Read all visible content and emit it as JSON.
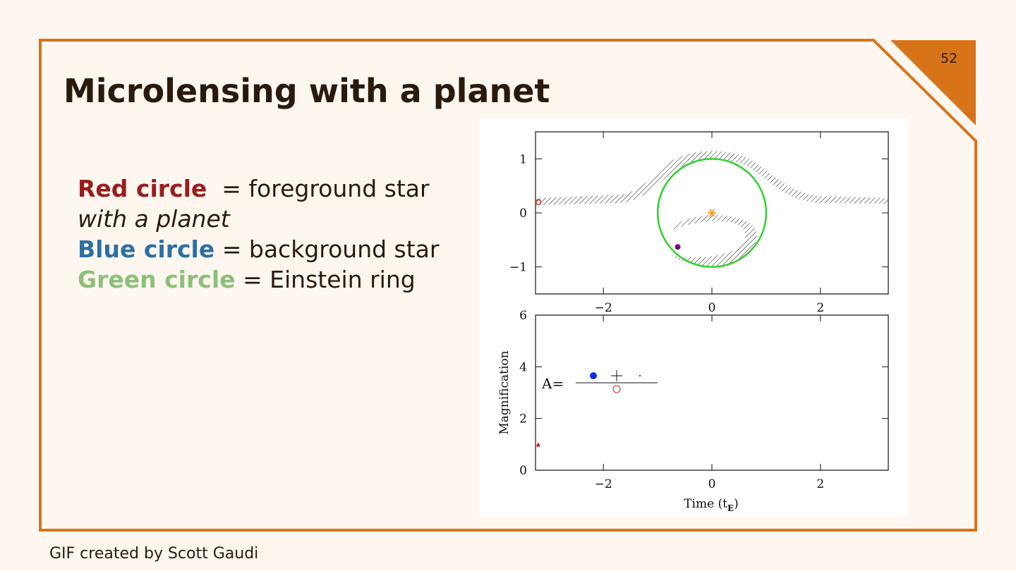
{
  "slide": {
    "number": "52",
    "title": "Microlensing with a planet",
    "lines": [
      {
        "label": "Red circle",
        "text": "= foreground star"
      },
      {
        "text": "with a planet"
      },
      {
        "label": "Blue circle",
        "text": "= background star"
      },
      {
        "label": "Green circle",
        "text": "= Einstein ring"
      }
    ],
    "footer": "GIF created by Scott Gaudi"
  },
  "figure": {
    "top": {
      "xlim": [
        -3.25,
        3.25
      ],
      "ylim": [
        -1.5,
        1.5
      ],
      "xticks": [
        {
          "value": -2,
          "label": "−2"
        },
        0,
        2
      ],
      "yticks": [
        {
          "value": -1,
          "label": "−1"
        },
        0,
        1
      ],
      "ring_radius": 1,
      "lens": [
        0,
        0
      ],
      "source": [
        -3.2,
        0.2
      ],
      "planet": [
        -0.63,
        -0.63
      ]
    },
    "bottom": {
      "xlim": [
        -3.25,
        3.25
      ],
      "ylim": [
        0,
        6
      ],
      "xticks": [
        {
          "value": -2,
          "label": "−2"
        },
        0,
        2
      ],
      "yticks": [
        0,
        2,
        4,
        6
      ],
      "ylabel": "Magnification",
      "xlabel": "Time (t",
      "xlabel_sub": "E",
      "xlabel_end": ")",
      "annotation": "A=",
      "point": [
        -3.2,
        1.0
      ]
    }
  }
}
